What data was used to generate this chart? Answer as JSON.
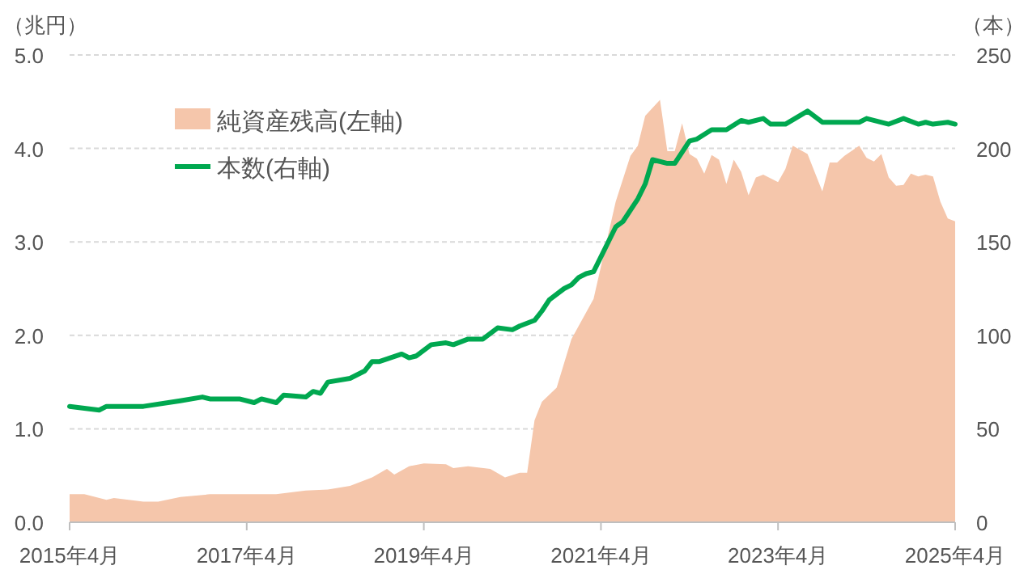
{
  "chart_data": {
    "type": "area",
    "ylabel": "（兆円）",
    "y2label": "（本）",
    "xlim": [
      "2015-04",
      "2025-04"
    ],
    "xticks": [
      {
        "value": "2015-04",
        "label": "2015年4月"
      },
      {
        "value": "2017-04",
        "label": "2017年4月"
      },
      {
        "value": "2019-04",
        "label": "2019年4月"
      },
      {
        "value": "2021-04",
        "label": "2021年4月"
      },
      {
        "value": "2023-04",
        "label": "2023年4月"
      },
      {
        "value": "2025-04",
        "label": "2025年4月"
      }
    ],
    "ylim": [
      0,
      5
    ],
    "yticks": [
      {
        "value": 0,
        "label": "0.0"
      },
      {
        "value": 1,
        "label": "1.0"
      },
      {
        "value": 2,
        "label": "2.0"
      },
      {
        "value": 3,
        "label": "3.0"
      },
      {
        "value": 4,
        "label": "4.0"
      },
      {
        "value": 5,
        "label": "5.0"
      }
    ],
    "y2lim": [
      0,
      250
    ],
    "y2ticks": [
      0,
      50,
      100,
      150,
      200,
      250
    ],
    "grid": "y",
    "legend": "top left",
    "series": [
      {
        "name": "純資産残高(左軸)",
        "color": "#f5c6ab",
        "axis": "y",
        "x": [
          "2015-04",
          "2015-06",
          "2015-09",
          "2015-10",
          "2016-02",
          "2016-04",
          "2016-07",
          "2016-11",
          "2017-04",
          "2017-08",
          "2017-12",
          "2018-03",
          "2018-06",
          "2018-09",
          "2018-11",
          "2018-12",
          "2019-02",
          "2019-04",
          "2019-07",
          "2019-08",
          "2019-10",
          "2020-01",
          "2020-03",
          "2020-05",
          "2020-06",
          "2020-07",
          "2020-08",
          "2020-10",
          "2020-12",
          "2021-03",
          "2021-06",
          "2021-08",
          "2021-09",
          "2021-10",
          "2021-12",
          "2022-01",
          "2022-02",
          "2022-03",
          "2022-04",
          "2022-05",
          "2022-06",
          "2022-07",
          "2022-08",
          "2022-09",
          "2022-10",
          "2022-11",
          "2022-12",
          "2023-01",
          "2023-02",
          "2023-04",
          "2023-05",
          "2023-06",
          "2023-08",
          "2023-10",
          "2023-11",
          "2023-12",
          "2024-01",
          "2024-03",
          "2024-04",
          "2024-05",
          "2024-06",
          "2024-07",
          "2024-08",
          "2024-09",
          "2024-10",
          "2024-11",
          "2024-12",
          "2025-01",
          "2025-02",
          "2025-03",
          "2025-04"
        ],
        "values": [
          0.3,
          0.3,
          0.24,
          0.26,
          0.22,
          0.22,
          0.27,
          0.3,
          0.3,
          0.3,
          0.34,
          0.35,
          0.39,
          0.48,
          0.57,
          0.51,
          0.6,
          0.63,
          0.62,
          0.58,
          0.6,
          0.57,
          0.48,
          0.53,
          0.53,
          1.09,
          1.29,
          1.44,
          1.96,
          2.39,
          3.43,
          3.92,
          4.03,
          4.35,
          4.52,
          3.97,
          3.97,
          4.27,
          3.94,
          3.89,
          3.73,
          3.93,
          3.88,
          3.62,
          3.88,
          3.75,
          3.5,
          3.69,
          3.72,
          3.64,
          3.78,
          4.03,
          3.94,
          3.54,
          3.85,
          3.85,
          3.92,
          4.03,
          3.9,
          3.86,
          3.94,
          3.69,
          3.6,
          3.61,
          3.73,
          3.7,
          3.72,
          3.7,
          3.43,
          3.25,
          3.22
        ]
      },
      {
        "name": "本数(右軸)",
        "type": "line",
        "color": "#00a850",
        "axis": "y2",
        "x": [
          "2015-04",
          "2015-08",
          "2015-09",
          "2016-02",
          "2016-07",
          "2016-10",
          "2016-11",
          "2017-03",
          "2017-05",
          "2017-06",
          "2017-08",
          "2017-09",
          "2017-12",
          "2018-01",
          "2018-02",
          "2018-03",
          "2018-06",
          "2018-08",
          "2018-09",
          "2018-10",
          "2019-01",
          "2019-02",
          "2019-03",
          "2019-05",
          "2019-07",
          "2019-08",
          "2019-10",
          "2019-12",
          "2020-02",
          "2020-04",
          "2020-05",
          "2020-07",
          "2020-08",
          "2020-09",
          "2020-11",
          "2020-12",
          "2021-01",
          "2021-02",
          "2021-03",
          "2021-06",
          "2021-07",
          "2021-09",
          "2021-10",
          "2021-11",
          "2022-01",
          "2022-02",
          "2022-04",
          "2022-05",
          "2022-07",
          "2022-09",
          "2022-11",
          "2022-12",
          "2023-02",
          "2023-03",
          "2023-05",
          "2023-08",
          "2023-10",
          "2024-03",
          "2024-04",
          "2024-07",
          "2024-09",
          "2024-11",
          "2024-12",
          "2025-01",
          "2025-03",
          "2025-04"
        ],
        "values": [
          62,
          60,
          62,
          62,
          65,
          67,
          66,
          66,
          64,
          66,
          64,
          68,
          67,
          70,
          69,
          75,
          77,
          81,
          86,
          86,
          90,
          88,
          89,
          95,
          96,
          95,
          98,
          98,
          104,
          103,
          105,
          108,
          113,
          119,
          125,
          127,
          131,
          133,
          134,
          158,
          161,
          173,
          181,
          194,
          192,
          192,
          204,
          205,
          210,
          210,
          215,
          214,
          216,
          213,
          213,
          220,
          214,
          214,
          216,
          213,
          216,
          213,
          214,
          213,
          214,
          213
        ]
      }
    ]
  }
}
